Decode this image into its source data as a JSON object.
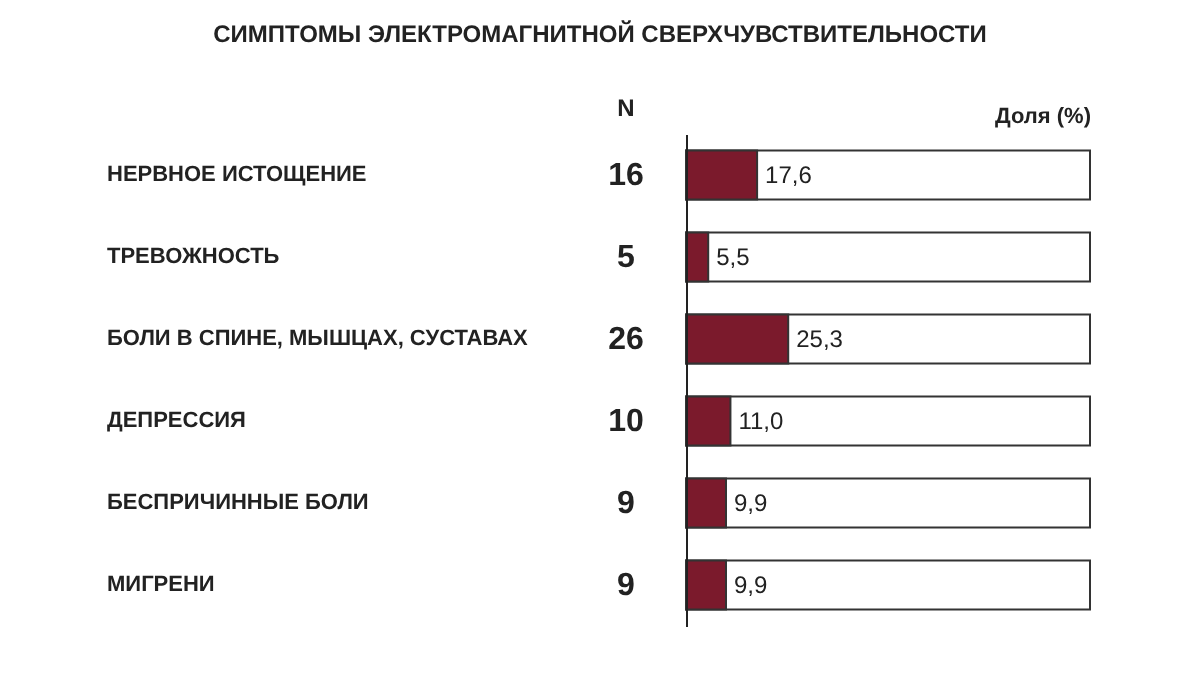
{
  "chart_data": {
    "type": "bar",
    "orientation": "horizontal",
    "title": "СИМПТОМЫ ЭЛЕКТРОМАГНИТНОЙ СВЕРХЧУВСТВИТЕЛЬНОСТИ",
    "xlabel": "Доля (%)",
    "categories": [
      "НЕРВНОЕ ИСТОЩЕНИЕ",
      "ТРЕВОЖНОСТЬ",
      "БОЛИ В СПИНЕ, МЫШЦАХ, СУСТАВАХ",
      "ДЕПРЕССИЯ",
      "БЕСПРИЧИННЫЕ БОЛИ",
      "МИГРЕНИ"
    ],
    "values": [
      17.6,
      5.5,
      25.3,
      11.0,
      9.9,
      9.9
    ],
    "value_labels": [
      "17,6",
      "5,5",
      "25,3",
      "11,0",
      "9,9",
      "9,9"
    ],
    "color": "#7b1a2c",
    "xlim": [
      0,
      100
    ],
    "tick_labels": "y",
    "annotations": [
      "N",
      "16",
      "5",
      "26",
      "10",
      "9",
      "9"
    ]
  }
}
